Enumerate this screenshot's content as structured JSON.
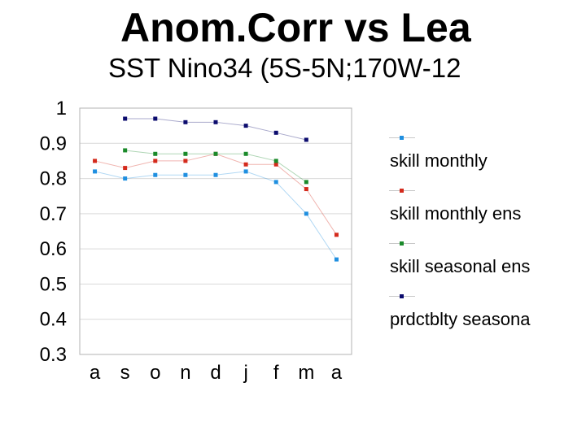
{
  "chart_data": {
    "type": "line",
    "title": "Anom.Corr vs Lea",
    "subtitle": "SST Nino34 (5S-5N;170W-12",
    "categories": [
      "a",
      "s",
      "o",
      "n",
      "d",
      "j",
      "f",
      "m",
      "a"
    ],
    "ylim": [
      0.3,
      1.0
    ],
    "yticks": [
      "0.3",
      "0.4",
      "0.5",
      "0.6",
      "0.7",
      "0.8",
      "0.9",
      "1"
    ],
    "grid": true,
    "legend_position": "right",
    "series": [
      {
        "name": "skill monthly",
        "color": "#1f8fe0",
        "values": [
          0.82,
          0.8,
          0.81,
          0.81,
          0.81,
          0.82,
          0.79,
          0.7,
          0.57
        ]
      },
      {
        "name": "skill monthly ens",
        "color": "#d42a1c",
        "values": [
          0.85,
          0.83,
          0.85,
          0.85,
          0.87,
          0.84,
          0.84,
          0.77,
          0.64
        ]
      },
      {
        "name": "skill seasonal ens",
        "color": "#1a8a2a",
        "values": [
          null,
          0.88,
          0.87,
          0.87,
          0.87,
          0.87,
          0.85,
          0.79,
          null
        ]
      },
      {
        "name": "prdctblty seasona",
        "color": "#0c0c6e",
        "values": [
          null,
          0.97,
          0.97,
          0.96,
          0.96,
          0.95,
          0.93,
          0.91,
          null
        ]
      }
    ]
  }
}
